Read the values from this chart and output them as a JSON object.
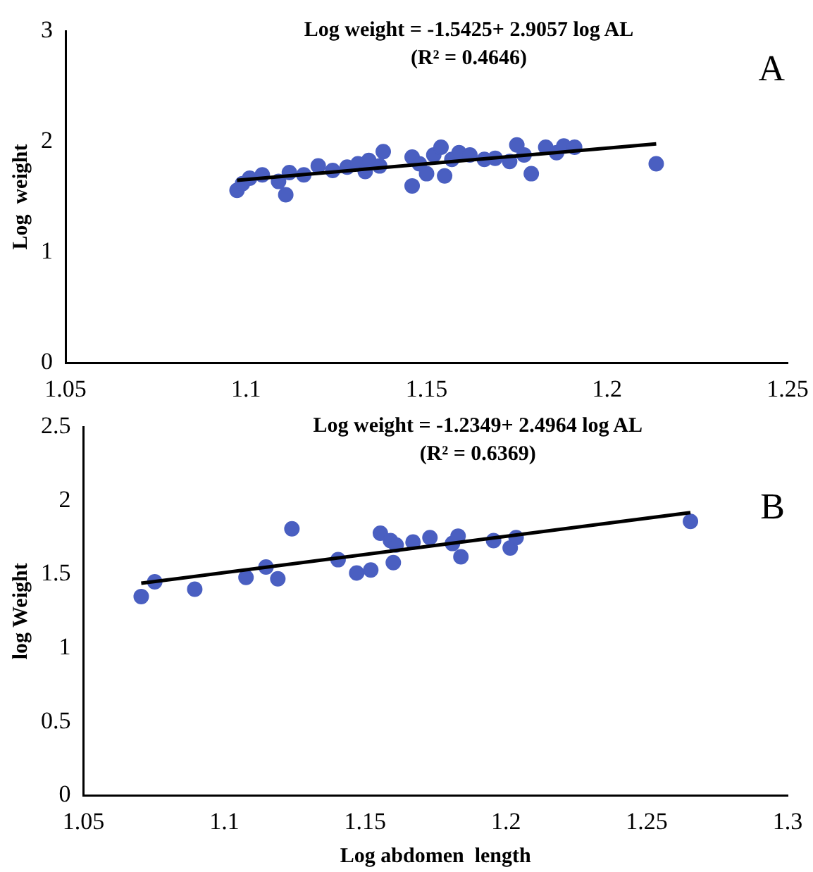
{
  "chart_data": [
    {
      "type": "scatter",
      "title": "Log weight = -1.5425+ 2.9057 log AL",
      "subtitle": "(R² = 0.4646)",
      "ylabel": "Log  weight",
      "annotations": [
        "A"
      ],
      "marker": "circle",
      "xlim": [
        1.05,
        1.25
      ],
      "xticks": [
        1.05,
        1.1,
        1.15,
        1.2,
        1.25
      ],
      "ylim": [
        0,
        3
      ],
      "yticks": [
        0,
        1,
        2,
        3
      ],
      "series": [
        {
          "type": "scatter",
          "color": "#4a5fc1",
          "x": [
            1.0975,
            1.099,
            1.101,
            1.1045,
            1.109,
            1.111,
            1.112,
            1.116,
            1.12,
            1.124,
            1.128,
            1.131,
            1.133,
            1.134,
            1.138,
            1.137,
            1.146,
            1.146,
            1.148,
            1.15,
            1.152,
            1.154,
            1.155,
            1.157,
            1.159,
            1.162,
            1.166,
            1.169,
            1.173,
            1.175,
            1.177,
            1.179,
            1.183,
            1.186,
            1.188,
            1.191,
            1.2136
          ],
          "values": [
            1.56,
            1.62,
            1.67,
            1.7,
            1.64,
            1.52,
            1.72,
            1.7,
            1.78,
            1.74,
            1.77,
            1.8,
            1.73,
            1.83,
            1.91,
            1.78,
            1.6,
            1.86,
            1.8,
            1.71,
            1.88,
            1.95,
            1.69,
            1.84,
            1.9,
            1.88,
            1.84,
            1.85,
            1.82,
            1.97,
            1.88,
            1.71,
            1.95,
            1.9,
            1.96,
            1.95,
            1.8
          ]
        },
        {
          "type": "line",
          "color": "#000000",
          "marker": "none",
          "x": [
            1.0975,
            1.2136
          ],
          "values": [
            1.65,
            1.98
          ]
        }
      ]
    },
    {
      "type": "scatter",
      "title": "Log weight = -1.2349+ 2.4964 log AL",
      "subtitle": "(R² = 0.6369)",
      "xlabel": "Log abdomen  length",
      "ylabel": "log Weight",
      "annotations": [
        "B"
      ],
      "marker": "circle",
      "xlim": [
        1.05,
        1.3
      ],
      "xticks": [
        1.05,
        1.1,
        1.15,
        1.2,
        1.25,
        1.3
      ],
      "ylim": [
        0,
        2.5
      ],
      "yticks": [
        0,
        0.5,
        1,
        1.5,
        2,
        2.5
      ],
      "series": [
        {
          "type": "scatter",
          "color": "#4a5fc1",
          "x": [
            1.0705,
            1.0753,
            1.0895,
            1.1077,
            1.1148,
            1.119,
            1.124,
            1.1404,
            1.147,
            1.152,
            1.1554,
            1.159,
            1.16,
            1.161,
            1.167,
            1.173,
            1.181,
            1.183,
            1.184,
            1.1956,
            1.2015,
            1.2036,
            1.2655
          ],
          "values": [
            1.35,
            1.45,
            1.4,
            1.48,
            1.55,
            1.47,
            1.81,
            1.6,
            1.51,
            1.53,
            1.78,
            1.73,
            1.58,
            1.7,
            1.72,
            1.75,
            1.71,
            1.76,
            1.62,
            1.73,
            1.68,
            1.75,
            1.86
          ]
        },
        {
          "type": "line",
          "color": "#000000",
          "marker": "none",
          "x": [
            1.0705,
            1.2655
          ],
          "values": [
            1.44,
            1.92
          ]
        }
      ]
    }
  ]
}
